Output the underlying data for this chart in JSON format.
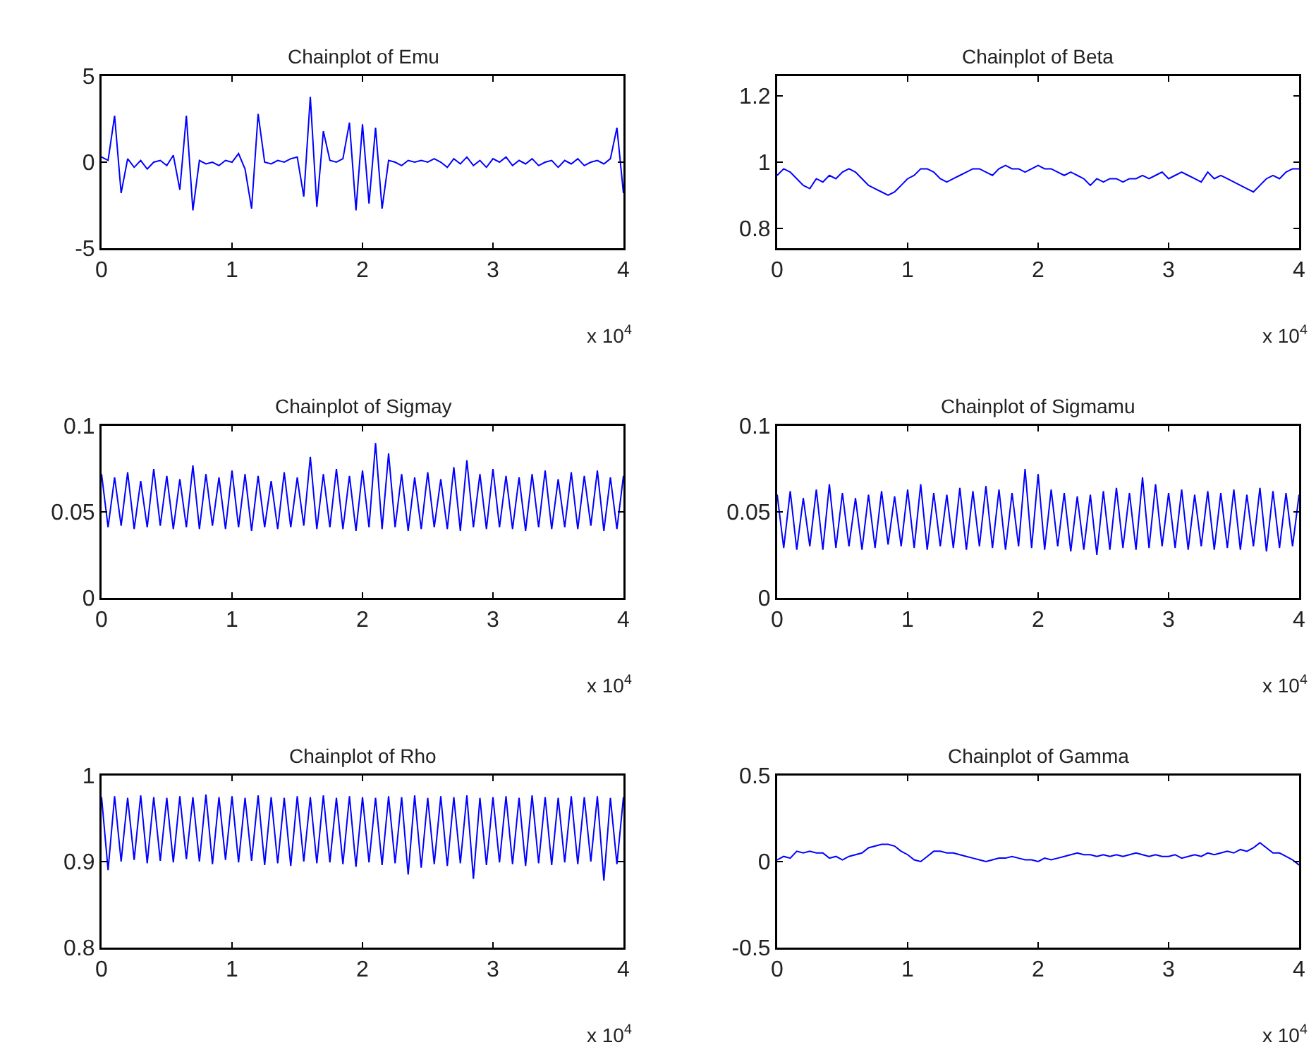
{
  "chart_data": [
    {
      "type": "line",
      "title": "Chainplot of Emu",
      "annotations": [
        "x 10$^{4}$"
      ],
      "x": [
        0,
        0.05,
        0.1,
        0.15,
        0.2,
        0.25,
        0.3,
        0.35,
        0.4,
        0.45,
        0.5,
        0.55,
        0.6,
        0.65,
        0.7,
        0.75,
        0.8,
        0.85,
        0.9,
        0.95,
        1,
        1.05,
        1.1,
        1.15,
        1.2,
        1.25,
        1.3,
        1.35,
        1.4,
        1.45,
        1.5,
        1.55,
        1.6,
        1.65,
        1.7,
        1.75,
        1.8,
        1.85,
        1.9,
        1.95,
        2,
        2.05,
        2.1,
        2.15,
        2.2,
        2.25,
        2.3,
        2.35,
        2.4,
        2.45,
        2.5,
        2.55,
        2.6,
        2.65,
        2.7,
        2.75,
        2.8,
        2.85,
        2.9,
        2.95,
        3,
        3.05,
        3.1,
        3.15,
        3.2,
        3.25,
        3.3,
        3.35,
        3.4,
        3.45,
        3.5,
        3.55,
        3.6,
        3.65,
        3.7,
        3.75,
        3.8,
        3.85,
        3.9,
        3.95,
        4
      ],
      "series": [
        {
          "color": "#0000ff",
          "values": [
            0.3,
            0.1,
            2.7,
            -1.8,
            0.2,
            -0.3,
            0.1,
            -0.4,
            0.0,
            0.1,
            -0.2,
            0.4,
            -1.6,
            2.7,
            -2.8,
            0.1,
            -0.1,
            0.0,
            -0.2,
            0.1,
            0.0,
            0.5,
            -0.4,
            -2.7,
            2.8,
            0.0,
            -0.1,
            0.1,
            0.0,
            0.2,
            0.3,
            -2.0,
            3.8,
            -2.6,
            1.8,
            0.1,
            0.0,
            0.2,
            2.3,
            -2.8,
            2.2,
            -2.4,
            2.0,
            -2.7,
            0.1,
            0.0,
            -0.2,
            0.1,
            0.0,
            0.1,
            0.0,
            0.2,
            0.0,
            -0.3,
            0.2,
            -0.1,
            0.3,
            -0.2,
            0.1,
            -0.3,
            0.2,
            0.0,
            0.3,
            -0.2,
            0.1,
            -0.1,
            0.2,
            -0.2,
            0.0,
            0.1,
            -0.3,
            0.1,
            -0.1,
            0.2,
            -0.2,
            0.0,
            0.1,
            -0.1,
            0.2,
            2.0,
            -1.8
          ]
        }
      ],
      "xlim": [
        0,
        4
      ],
      "xticks": [
        0,
        1,
        2,
        3,
        4
      ],
      "ylim": [
        -5,
        5
      ],
      "yticks": [
        -5,
        0,
        5
      ],
      "grid": false
    },
    {
      "type": "line",
      "title": "Chainplot of Beta",
      "annotations": [
        "x 10$^{4}$"
      ],
      "x": [
        0,
        0.05,
        0.1,
        0.15,
        0.2,
        0.25,
        0.3,
        0.35,
        0.4,
        0.45,
        0.5,
        0.55,
        0.6,
        0.65,
        0.7,
        0.75,
        0.8,
        0.85,
        0.9,
        0.95,
        1,
        1.05,
        1.1,
        1.15,
        1.2,
        1.25,
        1.3,
        1.35,
        1.4,
        1.45,
        1.5,
        1.55,
        1.6,
        1.65,
        1.7,
        1.75,
        1.8,
        1.85,
        1.9,
        1.95,
        2,
        2.05,
        2.1,
        2.15,
        2.2,
        2.25,
        2.3,
        2.35,
        2.4,
        2.45,
        2.5,
        2.55,
        2.6,
        2.65,
        2.7,
        2.75,
        2.8,
        2.85,
        2.9,
        2.95,
        3,
        3.05,
        3.1,
        3.15,
        3.2,
        3.25,
        3.3,
        3.35,
        3.4,
        3.45,
        3.5,
        3.55,
        3.6,
        3.65,
        3.7,
        3.75,
        3.8,
        3.85,
        3.9,
        3.95,
        4
      ],
      "series": [
        {
          "color": "#0000ff",
          "values": [
            0.96,
            0.98,
            0.97,
            0.95,
            0.93,
            0.92,
            0.95,
            0.94,
            0.96,
            0.95,
            0.97,
            0.98,
            0.97,
            0.95,
            0.93,
            0.92,
            0.91,
            0.9,
            0.91,
            0.93,
            0.95,
            0.96,
            0.98,
            0.98,
            0.97,
            0.95,
            0.94,
            0.95,
            0.96,
            0.97,
            0.98,
            0.98,
            0.97,
            0.96,
            0.98,
            0.99,
            0.98,
            0.98,
            0.97,
            0.98,
            0.99,
            0.98,
            0.98,
            0.97,
            0.96,
            0.97,
            0.96,
            0.95,
            0.93,
            0.95,
            0.94,
            0.95,
            0.95,
            0.94,
            0.95,
            0.95,
            0.96,
            0.95,
            0.96,
            0.97,
            0.95,
            0.96,
            0.97,
            0.96,
            0.95,
            0.94,
            0.97,
            0.95,
            0.96,
            0.95,
            0.94,
            0.93,
            0.92,
            0.91,
            0.93,
            0.95,
            0.96,
            0.95,
            0.97,
            0.98,
            0.98
          ]
        }
      ],
      "xlim": [
        0,
        4
      ],
      "xticks": [
        0,
        1,
        2,
        3,
        4
      ],
      "ylim": [
        0.74,
        1.26
      ],
      "yticks": [
        0.8,
        1,
        1.2
      ],
      "grid": false
    },
    {
      "type": "line",
      "title": "Chainplot of Sigmay",
      "annotations": [
        "x 10$^{4}$"
      ],
      "x": [
        0,
        0.05,
        0.1,
        0.15,
        0.2,
        0.25,
        0.3,
        0.35,
        0.4,
        0.45,
        0.5,
        0.55,
        0.6,
        0.65,
        0.7,
        0.75,
        0.8,
        0.85,
        0.9,
        0.95,
        1,
        1.05,
        1.1,
        1.15,
        1.2,
        1.25,
        1.3,
        1.35,
        1.4,
        1.45,
        1.5,
        1.55,
        1.6,
        1.65,
        1.7,
        1.75,
        1.8,
        1.85,
        1.9,
        1.95,
        2,
        2.05,
        2.1,
        2.15,
        2.2,
        2.25,
        2.3,
        2.35,
        2.4,
        2.45,
        2.5,
        2.55,
        2.6,
        2.65,
        2.7,
        2.75,
        2.8,
        2.85,
        2.9,
        2.95,
        3,
        3.05,
        3.1,
        3.15,
        3.2,
        3.25,
        3.3,
        3.35,
        3.4,
        3.45,
        3.5,
        3.55,
        3.6,
        3.65,
        3.7,
        3.75,
        3.8,
        3.85,
        3.9,
        3.95,
        4
      ],
      "series": [
        {
          "color": "#0000ff",
          "values": [
            0.072,
            0.041,
            0.07,
            0.042,
            0.073,
            0.04,
            0.068,
            0.041,
            0.075,
            0.042,
            0.071,
            0.04,
            0.069,
            0.041,
            0.077,
            0.04,
            0.072,
            0.042,
            0.07,
            0.04,
            0.074,
            0.041,
            0.072,
            0.039,
            0.071,
            0.041,
            0.068,
            0.04,
            0.073,
            0.041,
            0.07,
            0.042,
            0.082,
            0.04,
            0.072,
            0.041,
            0.075,
            0.04,
            0.071,
            0.039,
            0.074,
            0.041,
            0.09,
            0.04,
            0.084,
            0.041,
            0.072,
            0.039,
            0.07,
            0.04,
            0.073,
            0.041,
            0.069,
            0.04,
            0.076,
            0.039,
            0.08,
            0.041,
            0.072,
            0.04,
            0.075,
            0.041,
            0.071,
            0.04,
            0.07,
            0.039,
            0.072,
            0.041,
            0.074,
            0.04,
            0.069,
            0.041,
            0.073,
            0.04,
            0.071,
            0.042,
            0.074,
            0.039,
            0.07,
            0.04,
            0.071
          ]
        }
      ],
      "xlim": [
        0,
        4
      ],
      "xticks": [
        0,
        1,
        2,
        3,
        4
      ],
      "ylim": [
        0,
        0.1
      ],
      "yticks": [
        0,
        0.05,
        0.1
      ],
      "grid": false
    },
    {
      "type": "line",
      "title": "Chainplot of Sigmamu",
      "annotations": [
        "x 10$^{4}$"
      ],
      "x": [
        0,
        0.05,
        0.1,
        0.15,
        0.2,
        0.25,
        0.3,
        0.35,
        0.4,
        0.45,
        0.5,
        0.55,
        0.6,
        0.65,
        0.7,
        0.75,
        0.8,
        0.85,
        0.9,
        0.95,
        1,
        1.05,
        1.1,
        1.15,
        1.2,
        1.25,
        1.3,
        1.35,
        1.4,
        1.45,
        1.5,
        1.55,
        1.6,
        1.65,
        1.7,
        1.75,
        1.8,
        1.85,
        1.9,
        1.95,
        2,
        2.05,
        2.1,
        2.15,
        2.2,
        2.25,
        2.3,
        2.35,
        2.4,
        2.45,
        2.5,
        2.55,
        2.6,
        2.65,
        2.7,
        2.75,
        2.8,
        2.85,
        2.9,
        2.95,
        3,
        3.05,
        3.1,
        3.15,
        3.2,
        3.25,
        3.3,
        3.35,
        3.4,
        3.45,
        3.5,
        3.55,
        3.6,
        3.65,
        3.7,
        3.75,
        3.8,
        3.85,
        3.9,
        3.95,
        4
      ],
      "series": [
        {
          "color": "#0000ff",
          "values": [
            0.06,
            0.029,
            0.062,
            0.028,
            0.058,
            0.03,
            0.063,
            0.028,
            0.066,
            0.029,
            0.061,
            0.03,
            0.058,
            0.028,
            0.06,
            0.029,
            0.062,
            0.031,
            0.059,
            0.03,
            0.063,
            0.029,
            0.066,
            0.028,
            0.061,
            0.03,
            0.06,
            0.029,
            0.064,
            0.028,
            0.062,
            0.03,
            0.065,
            0.029,
            0.063,
            0.028,
            0.061,
            0.03,
            0.075,
            0.029,
            0.072,
            0.028,
            0.063,
            0.03,
            0.061,
            0.027,
            0.059,
            0.028,
            0.06,
            0.025,
            0.062,
            0.028,
            0.064,
            0.029,
            0.061,
            0.028,
            0.07,
            0.029,
            0.066,
            0.03,
            0.061,
            0.029,
            0.063,
            0.028,
            0.06,
            0.03,
            0.062,
            0.028,
            0.061,
            0.029,
            0.063,
            0.028,
            0.06,
            0.03,
            0.064,
            0.027,
            0.062,
            0.029,
            0.061,
            0.03,
            0.06
          ]
        }
      ],
      "xlim": [
        0,
        4
      ],
      "xticks": [
        0,
        1,
        2,
        3,
        4
      ],
      "ylim": [
        0,
        0.1
      ],
      "yticks": [
        0,
        0.05,
        0.1
      ],
      "grid": false
    },
    {
      "type": "line",
      "title": "Chainplot of Rho",
      "annotations": [
        "x 10$^{4}$"
      ],
      "x": [
        0,
        0.05,
        0.1,
        0.15,
        0.2,
        0.25,
        0.3,
        0.35,
        0.4,
        0.45,
        0.5,
        0.55,
        0.6,
        0.65,
        0.7,
        0.75,
        0.8,
        0.85,
        0.9,
        0.95,
        1,
        1.05,
        1.1,
        1.15,
        1.2,
        1.25,
        1.3,
        1.35,
        1.4,
        1.45,
        1.5,
        1.55,
        1.6,
        1.65,
        1.7,
        1.75,
        1.8,
        1.85,
        1.9,
        1.95,
        2,
        2.05,
        2.1,
        2.15,
        2.2,
        2.25,
        2.3,
        2.35,
        2.4,
        2.45,
        2.5,
        2.55,
        2.6,
        2.65,
        2.7,
        2.75,
        2.8,
        2.85,
        2.9,
        2.95,
        3,
        3.05,
        3.1,
        3.15,
        3.2,
        3.25,
        3.3,
        3.35,
        3.4,
        3.45,
        3.5,
        3.55,
        3.6,
        3.65,
        3.7,
        3.75,
        3.8,
        3.85,
        3.9,
        3.95,
        4
      ],
      "series": [
        {
          "color": "#0000ff",
          "values": [
            0.975,
            0.89,
            0.976,
            0.9,
            0.974,
            0.902,
            0.977,
            0.898,
            0.975,
            0.901,
            0.974,
            0.899,
            0.976,
            0.903,
            0.975,
            0.9,
            0.978,
            0.897,
            0.975,
            0.902,
            0.976,
            0.899,
            0.974,
            0.901,
            0.977,
            0.896,
            0.975,
            0.898,
            0.974,
            0.895,
            0.976,
            0.9,
            0.975,
            0.898,
            0.977,
            0.899,
            0.974,
            0.897,
            0.976,
            0.894,
            0.975,
            0.899,
            0.974,
            0.896,
            0.976,
            0.898,
            0.975,
            0.885,
            0.977,
            0.893,
            0.974,
            0.897,
            0.976,
            0.895,
            0.975,
            0.898,
            0.977,
            0.88,
            0.974,
            0.896,
            0.975,
            0.899,
            0.976,
            0.897,
            0.974,
            0.895,
            0.977,
            0.898,
            0.975,
            0.896,
            0.974,
            0.899,
            0.976,
            0.897,
            0.975,
            0.9,
            0.976,
            0.878,
            0.974,
            0.897,
            0.975
          ]
        }
      ],
      "xlim": [
        0,
        4
      ],
      "xticks": [
        0,
        1,
        2,
        3,
        4
      ],
      "ylim": [
        0.8,
        1
      ],
      "yticks": [
        0.8,
        0.9,
        1
      ],
      "grid": false
    },
    {
      "type": "line",
      "title": "Chainplot of Gamma",
      "annotations": [
        "x 10$^{4}$"
      ],
      "x": [
        0,
        0.05,
        0.1,
        0.15,
        0.2,
        0.25,
        0.3,
        0.35,
        0.4,
        0.45,
        0.5,
        0.55,
        0.6,
        0.65,
        0.7,
        0.75,
        0.8,
        0.85,
        0.9,
        0.95,
        1,
        1.05,
        1.1,
        1.15,
        1.2,
        1.25,
        1.3,
        1.35,
        1.4,
        1.45,
        1.5,
        1.55,
        1.6,
        1.65,
        1.7,
        1.75,
        1.8,
        1.85,
        1.9,
        1.95,
        2,
        2.05,
        2.1,
        2.15,
        2.2,
        2.25,
        2.3,
        2.35,
        2.4,
        2.45,
        2.5,
        2.55,
        2.6,
        2.65,
        2.7,
        2.75,
        2.8,
        2.85,
        2.9,
        2.95,
        3,
        3.05,
        3.1,
        3.15,
        3.2,
        3.25,
        3.3,
        3.35,
        3.4,
        3.45,
        3.5,
        3.55,
        3.6,
        3.65,
        3.7,
        3.75,
        3.8,
        3.85,
        3.9,
        3.95,
        4
      ],
      "series": [
        {
          "color": "#0000ff",
          "values": [
            0.01,
            0.03,
            0.02,
            0.06,
            0.05,
            0.06,
            0.05,
            0.05,
            0.02,
            0.03,
            0.01,
            0.03,
            0.04,
            0.05,
            0.08,
            0.09,
            0.1,
            0.1,
            0.09,
            0.06,
            0.04,
            0.01,
            0.0,
            0.03,
            0.06,
            0.06,
            0.05,
            0.05,
            0.04,
            0.03,
            0.02,
            0.01,
            0.0,
            0.01,
            0.02,
            0.02,
            0.03,
            0.02,
            0.01,
            0.01,
            0.0,
            0.02,
            0.01,
            0.02,
            0.03,
            0.04,
            0.05,
            0.04,
            0.04,
            0.03,
            0.04,
            0.03,
            0.04,
            0.03,
            0.04,
            0.05,
            0.04,
            0.03,
            0.04,
            0.03,
            0.03,
            0.04,
            0.02,
            0.03,
            0.04,
            0.03,
            0.05,
            0.04,
            0.05,
            0.06,
            0.05,
            0.07,
            0.06,
            0.08,
            0.11,
            0.08,
            0.05,
            0.05,
            0.03,
            0.01,
            -0.02
          ]
        }
      ],
      "xlim": [
        0,
        4
      ],
      "xticks": [
        0,
        1,
        2,
        3,
        4
      ],
      "ylim": [
        -0.5,
        0.5
      ],
      "yticks": [
        -0.5,
        0,
        0.5
      ],
      "grid": false
    }
  ]
}
